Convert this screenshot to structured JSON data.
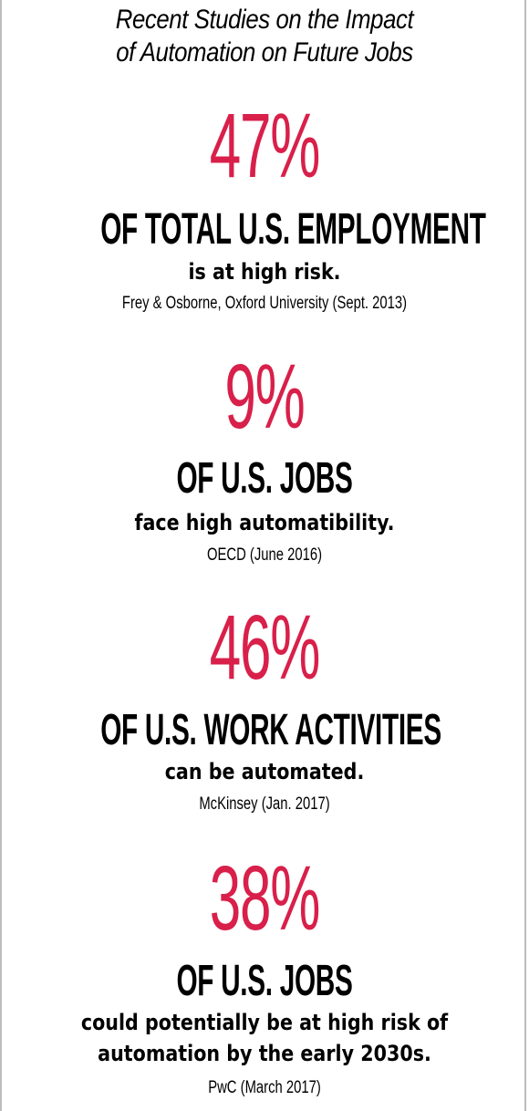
{
  "title_lines": [
    "Recent Studies on the Impact",
    "of Automation on Future Jobs"
  ],
  "stats": [
    {
      "percent": "47%",
      "headline": "OF TOTAL U.S. EMPLOYMENT",
      "subtext": [
        "is at high risk."
      ],
      "source": "Frey & Osborne, Oxford University (Sept. 2013)"
    },
    {
      "percent": "9%",
      "headline": "OF U.S. JOBS",
      "subtext": [
        "face high automatibility."
      ],
      "source": "OECD (June 2016)"
    },
    {
      "percent": "46%",
      "headline": "OF U.S. WORK ACTIVITIES",
      "subtext": [
        "can be automated."
      ],
      "source": "McKinsey (Jan. 2017)"
    },
    {
      "percent": "38%",
      "headline": "OF U.S. JOBS",
      "subtext": [
        "could potentially be at high risk of",
        "automation by the early 2030s."
      ],
      "source": "PwC (March 2017)"
    }
  ],
  "colors": {
    "accent": "#d8204a",
    "text": "#000000",
    "border": "#bdbdbd"
  }
}
